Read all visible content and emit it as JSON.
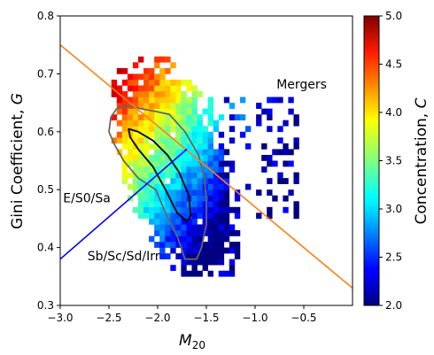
{
  "chart_data": {
    "type": "heatmap",
    "xlabel": "M",
    "xlabel_sub": "20",
    "ylabel": "Gini Coefficient,",
    "ylabel_var": "G",
    "colorbar_label": "Concentration,",
    "colorbar_var": "C",
    "xlim": [
      -3.0,
      0.0
    ],
    "ylim": [
      0.3,
      0.8
    ],
    "x_ticks": [
      -3.0,
      -2.5,
      -2.0,
      -1.5,
      -1.0,
      -0.5
    ],
    "x_tick_labels": [
      "−3.0",
      "−2.5",
      "−2.0",
      "−1.5",
      "−1.0",
      "−0.5"
    ],
    "y_ticks": [
      0.3,
      0.4,
      0.5,
      0.6,
      0.7,
      0.8
    ],
    "y_tick_labels": [
      "0.3",
      "0.4",
      "0.5",
      "0.6",
      "0.7",
      "0.8"
    ],
    "colorbar_range": [
      2.0,
      5.0
    ],
    "colorbar_ticks": [
      2.0,
      2.5,
      3.0,
      3.5,
      4.0,
      4.5,
      5.0
    ],
    "colorbar_tick_labels": [
      "2.0",
      "2.5",
      "3.0",
      "3.5",
      "4.0",
      "4.5",
      "5.0"
    ],
    "colormap": "jet",
    "lines": [
      {
        "color": "#ff7f0e",
        "x": [
          -3.0,
          0.0
        ],
        "y": [
          0.75,
          0.33
        ]
      },
      {
        "color": "#0000ff",
        "x": [
          -3.0,
          -1.7
        ],
        "y": [
          0.38,
          0.57
        ]
      }
    ],
    "annotations": [
      {
        "text": "Mergers",
        "x": -0.78,
        "y": 0.675
      },
      {
        "text": "E/S0/Sa",
        "x": -2.97,
        "y": 0.478
      },
      {
        "text": "Sb/Sc/Sd/Irr",
        "x": -2.72,
        "y": 0.378
      }
    ],
    "contours": [
      {
        "color": "#000000",
        "x": [
          -2.3,
          -2.2,
          -2.05,
          -1.9,
          -1.78,
          -1.68,
          -1.66,
          -1.7,
          -1.8,
          -1.92,
          -2.05,
          -2.2,
          -2.28,
          -2.3
        ],
        "y": [
          0.605,
          0.6,
          0.585,
          0.56,
          0.53,
          0.49,
          0.455,
          0.445,
          0.46,
          0.5,
          0.54,
          0.57,
          0.59,
          0.605
        ]
      },
      {
        "color": "#666666",
        "x": [
          -2.42,
          -2.3,
          -2.18,
          -2.02,
          -1.88,
          -1.72,
          -1.58,
          -1.52,
          -1.5,
          -1.5,
          -1.55,
          -1.6,
          -1.72,
          -1.8,
          -1.92,
          -2.02,
          -2.2,
          -2.35,
          -2.45,
          -2.5,
          -2.48,
          -2.42
        ],
        "y": [
          0.64,
          0.645,
          0.64,
          0.635,
          0.63,
          0.6,
          0.56,
          0.52,
          0.48,
          0.44,
          0.4,
          0.38,
          0.38,
          0.42,
          0.46,
          0.5,
          0.52,
          0.55,
          0.58,
          0.6,
          0.625,
          0.64
        ]
      }
    ]
  }
}
